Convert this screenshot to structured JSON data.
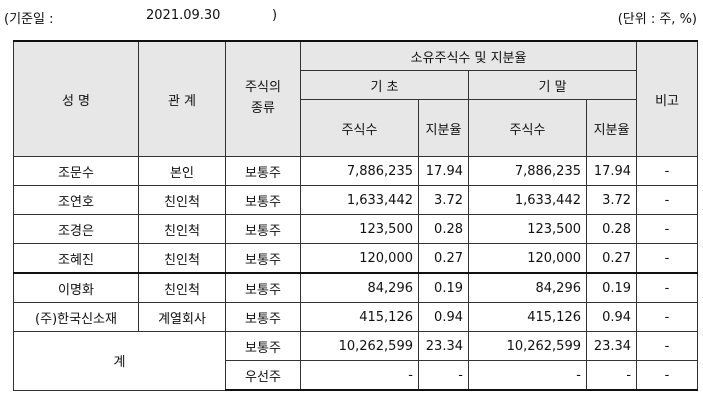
{
  "header_line": {
    "base_label": "(기준일 :",
    "base_date": "2021.09.30",
    "base_close": ")",
    "unit": "(단위 : 주, %)"
  },
  "columns": {
    "name": "성 명",
    "relation": "관 계",
    "stock_type": "주식의\n종류",
    "group": "소유주식수 및 지분율",
    "begin": "기 초",
    "end": "기 말",
    "shares": "주식수",
    "ratio": "지분율",
    "note": "비고"
  },
  "rows": [
    {
      "name": "조문수",
      "relation": "본인",
      "type": "보통주",
      "begin_shares": "7,886,235",
      "begin_ratio": "17.94",
      "end_shares": "7,886,235",
      "end_ratio": "17.94",
      "note": "-"
    },
    {
      "name": "조연호",
      "relation": "친인척",
      "type": "보통주",
      "begin_shares": "1,633,442",
      "begin_ratio": "3.72",
      "end_shares": "1,633,442",
      "end_ratio": "3.72",
      "note": "-"
    },
    {
      "name": "조경은",
      "relation": "친인척",
      "type": "보통주",
      "begin_shares": "123,500",
      "begin_ratio": "0.28",
      "end_shares": "123,500",
      "end_ratio": "0.28",
      "note": "-"
    },
    {
      "name": "조혜진",
      "relation": "친인척",
      "type": "보통주",
      "begin_shares": "120,000",
      "begin_ratio": "0.27",
      "end_shares": "120,000",
      "end_ratio": "0.27",
      "note": "-"
    },
    {
      "name": "이명화",
      "relation": "친인척",
      "type": "보통주",
      "begin_shares": "84,296",
      "begin_ratio": "0.19",
      "end_shares": "84,296",
      "end_ratio": "0.19",
      "note": "-"
    },
    {
      "name": "(주)한국신소재",
      "relation": "계열회사",
      "type": "보통주",
      "begin_shares": "415,126",
      "begin_ratio": "0.94",
      "end_shares": "415,126",
      "end_ratio": "0.94",
      "note": "-"
    }
  ],
  "total": {
    "label": "계",
    "rows": [
      {
        "type": "보통주",
        "begin_shares": "10,262,599",
        "begin_ratio": "23.34",
        "end_shares": "10,262,599",
        "end_ratio": "23.34",
        "note": "-"
      },
      {
        "type": "우선주",
        "begin_shares": "-",
        "begin_ratio": "-",
        "end_shares": "-",
        "end_ratio": "-",
        "note": "-"
      }
    ]
  }
}
